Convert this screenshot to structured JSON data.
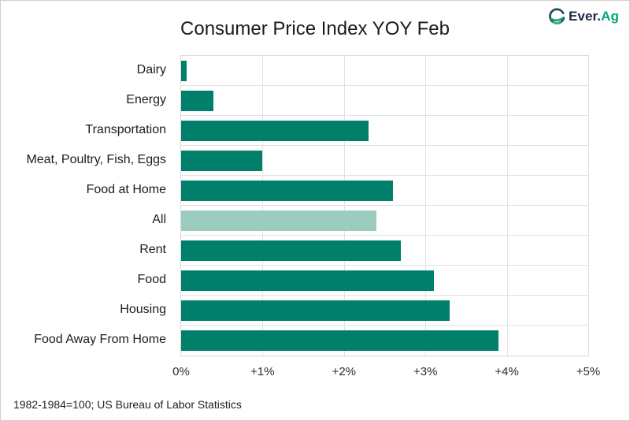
{
  "logo": {
    "text_primary": "Ever.",
    "text_accent": "Ag",
    "icon_dark_color": "#1d4f5f",
    "icon_green_color": "#1fa36d",
    "icon_light_green_color": "#42b77f"
  },
  "chart_data": {
    "type": "bar",
    "orientation": "horizontal",
    "title": "Consumer Price Index YOY Feb",
    "categories": [
      "Dairy",
      "Energy",
      "Transportation",
      "Meat, Poultry, Fish, Eggs",
      "Food at Home",
      "All",
      "Rent",
      "Food",
      "Housing",
      "Food Away From Home"
    ],
    "values": [
      0.07,
      0.4,
      2.3,
      1.0,
      2.6,
      2.4,
      2.7,
      3.1,
      3.3,
      3.9
    ],
    "highlight_category": "All",
    "bar_color": "#00806b",
    "highlight_bar_color": "#9ccbc0",
    "xlim": [
      0,
      5
    ],
    "x_ticks": [
      "0%",
      "+1%",
      "+2%",
      "+3%",
      "+4%",
      "+5%"
    ],
    "x_tick_values": [
      0,
      1,
      2,
      3,
      4,
      5
    ],
    "grid": true,
    "legend_position": "none",
    "xlabel": "",
    "ylabel": ""
  },
  "footer": {
    "note": "1982-1984=100; US Bureau of Labor Statistics"
  }
}
